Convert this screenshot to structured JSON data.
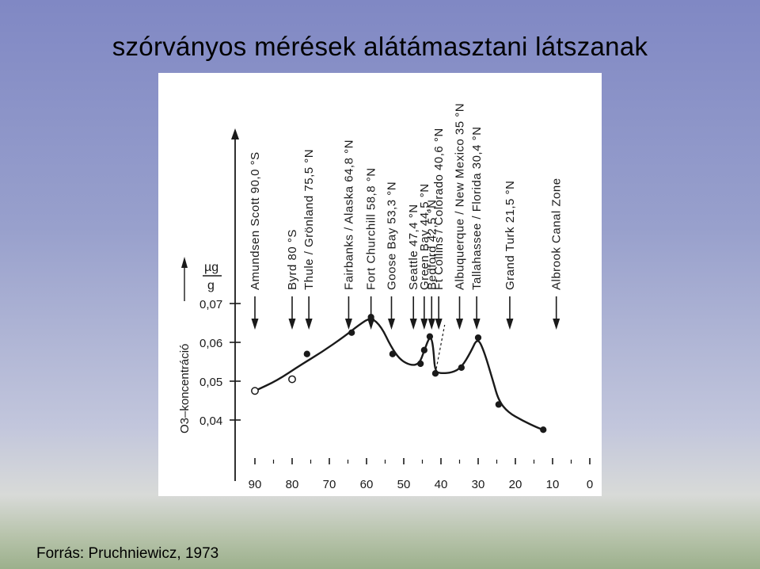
{
  "slide": {
    "title": "szórványos mérések alátámasztani látszanak",
    "source": "Forrás: Pruchniewicz, 1973"
  },
  "chart_data": {
    "type": "line",
    "title": "",
    "xlabel": "",
    "ylabel": "O3–koncentráció",
    "y_unit_numerator": "µg",
    "y_unit_denominator": "g",
    "x_ticks": [
      "90",
      "80",
      "70",
      "60",
      "50",
      "40",
      "30",
      "20",
      "10",
      "0"
    ],
    "y_ticks": [
      "0,04",
      "0,05",
      "0,06",
      "0,07"
    ],
    "xlim": [
      90,
      0
    ],
    "ylim": [
      0.035,
      0.075
    ],
    "grid": false,
    "stations": [
      {
        "label": "Amundsen Scott 90,0 °S",
        "lat": 90.0
      },
      {
        "label": "Byrd 80 °S",
        "lat": 80.0
      },
      {
        "label": "Thule / Grönland 75,5 °N",
        "lat": 75.5
      },
      {
        "label": "Fairbanks / Alaska 64,8 °N",
        "lat": 64.8
      },
      {
        "label": "Fort Churchill 58,8 °N",
        "lat": 58.8
      },
      {
        "label": "Goose Bay 53,3 °N",
        "lat": 53.3
      },
      {
        "label": "Seattle 47,4 °N",
        "lat": 47.4
      },
      {
        "label": "Green Bay 44,5 °N",
        "lat": 44.5
      },
      {
        "label": "Bedford 42,5 °N",
        "lat": 42.5
      },
      {
        "label": "Ft Collins / Colorado 40,6 °N",
        "lat": 40.6
      },
      {
        "label": "Albuquerque / New Mexico 35 °N",
        "lat": 35.0
      },
      {
        "label": "Tallahassee / Florida 30,4 °N",
        "lat": 30.4
      },
      {
        "label": "Grand Turk 21,5 °N",
        "lat": 21.5
      },
      {
        "label": "Albrook Canal Zone",
        "lat": 9.0
      }
    ],
    "series": [
      {
        "points": [
          {
            "x": 90.0,
            "y": 0.0475,
            "marker": "open"
          },
          {
            "x": 80.0,
            "y": 0.0505,
            "marker": "open"
          },
          {
            "x": 76.0,
            "y": 0.057,
            "marker": "filled"
          },
          {
            "x": 64.0,
            "y": 0.0625,
            "marker": "filled"
          },
          {
            "x": 58.8,
            "y": 0.0665,
            "marker": "filled"
          },
          {
            "x": 53.0,
            "y": 0.057,
            "marker": "filled"
          },
          {
            "x": 45.5,
            "y": 0.0545,
            "marker": "filled"
          },
          {
            "x": 44.5,
            "y": 0.058,
            "marker": "filled"
          },
          {
            "x": 43.0,
            "y": 0.0615,
            "marker": "filled"
          },
          {
            "x": 41.5,
            "y": 0.052,
            "marker": "filled"
          },
          {
            "x": 34.5,
            "y": 0.0535,
            "marker": "filled"
          },
          {
            "x": 30.0,
            "y": 0.0612,
            "marker": "filled"
          },
          {
            "x": 24.5,
            "y": 0.044,
            "marker": "filled"
          },
          {
            "x": 12.5,
            "y": 0.0375,
            "marker": "filled"
          }
        ],
        "curve": [
          [
            90,
            0.0475
          ],
          [
            84,
            0.0502
          ],
          [
            78,
            0.054
          ],
          [
            72,
            0.0575
          ],
          [
            66,
            0.0615
          ],
          [
            62,
            0.0645
          ],
          [
            58.8,
            0.0665
          ],
          [
            56,
            0.064
          ],
          [
            53.5,
            0.059
          ],
          [
            51,
            0.0555
          ],
          [
            48,
            0.054
          ],
          [
            45.8,
            0.0545
          ],
          [
            44.5,
            0.0578
          ],
          [
            43.2,
            0.0612
          ],
          [
            42.5,
            0.061
          ],
          [
            42.0,
            0.058
          ],
          [
            41.6,
            0.0525
          ],
          [
            40,
            0.052
          ],
          [
            37,
            0.0522
          ],
          [
            34.5,
            0.0535
          ],
          [
            32,
            0.0575
          ],
          [
            30.2,
            0.0612
          ],
          [
            28.5,
            0.058
          ],
          [
            26,
            0.05
          ],
          [
            24.5,
            0.045
          ],
          [
            22,
            0.042
          ],
          [
            18,
            0.0398
          ],
          [
            14,
            0.038
          ],
          [
            12.5,
            0.0375
          ]
        ]
      }
    ],
    "dashed_line": [
      [
        41.5,
        0.052
      ],
      [
        39.0,
        0.0645
      ]
    ]
  }
}
